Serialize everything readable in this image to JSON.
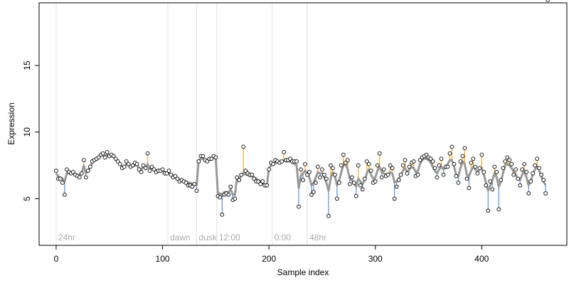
{
  "chart_data": {
    "type": "scatter",
    "title": "",
    "xlabel": "Sample index",
    "ylabel": "Expression",
    "xlim": [
      -16,
      480
    ],
    "ylim": [
      1.5,
      19.7
    ],
    "x_ticks": [
      0,
      100,
      200,
      300,
      400
    ],
    "y_ticks": [
      5,
      10,
      15
    ],
    "grid": false,
    "legend": "none",
    "colors": {
      "points_fill": "#ffffff",
      "points_stroke": "#000000",
      "fit_line": "#999999",
      "residual_positive": "#f5a623",
      "residual_negative": "#5b8fd6",
      "event_line": "#e0e0e0",
      "event_label": "#aaaaaa",
      "axis": "#000000"
    },
    "events": [
      {
        "x": 0,
        "label": "24hr"
      },
      {
        "x": 105,
        "label": "dawn"
      },
      {
        "x": 132,
        "label": "dusk"
      },
      {
        "x": 151,
        "label": "12:00"
      },
      {
        "x": 203,
        "label": "0:00"
      },
      {
        "x": 236,
        "label": "48hr"
      }
    ],
    "series": [
      {
        "x": [
          0,
          2,
          4,
          6,
          8,
          10,
          12,
          14,
          16,
          18,
          20,
          22,
          24,
          26,
          28,
          30,
          32,
          34,
          36,
          38,
          40,
          42,
          44,
          46,
          48,
          50,
          52,
          54,
          56,
          58,
          60,
          62,
          64,
          66,
          68,
          70,
          72,
          74,
          76,
          78,
          80,
          82,
          84,
          86,
          88,
          90,
          92,
          94,
          96,
          98,
          100,
          102,
          104,
          106,
          108,
          110,
          112,
          114,
          116,
          118,
          120,
          122,
          124,
          126,
          128,
          130,
          132,
          134,
          136,
          138,
          140,
          142,
          144,
          146,
          148,
          150,
          152,
          154,
          156,
          158,
          160,
          162,
          164,
          166,
          168,
          170,
          172,
          174,
          176,
          178,
          180,
          182,
          184,
          186,
          188,
          190,
          192,
          194,
          196,
          198,
          200,
          202,
          204,
          206,
          208,
          210,
          212,
          214,
          216,
          218,
          220,
          222,
          224,
          226,
          228,
          230,
          232,
          234,
          236,
          238,
          240,
          242,
          244,
          246,
          248,
          250,
          252,
          254,
          256,
          258,
          260,
          262,
          264,
          266,
          268,
          270,
          272,
          274,
          276,
          278,
          280,
          282,
          284,
          286,
          288,
          290,
          292,
          294,
          296,
          298,
          300,
          302,
          304,
          306,
          308,
          310,
          312,
          314,
          316,
          318,
          320,
          322,
          324,
          326,
          328,
          330,
          332,
          334,
          336,
          338,
          340,
          342,
          344,
          346,
          348,
          350,
          352,
          354,
          356,
          358,
          360,
          362,
          364,
          366,
          368,
          370,
          372,
          374,
          376,
          378,
          380,
          382,
          384,
          386,
          388,
          390,
          392,
          394,
          396,
          398,
          400,
          402,
          404,
          406,
          408,
          410,
          412,
          414,
          416,
          418,
          420,
          422,
          424,
          426,
          428,
          430,
          432,
          434,
          436,
          438,
          440,
          442,
          444,
          446,
          448,
          450,
          452,
          454,
          456,
          458,
          460,
          462
        ],
        "observed": [
          7.1,
          6.5,
          6.5,
          6.2,
          5.3,
          7.2,
          7.0,
          6.9,
          7.0,
          6.8,
          6.7,
          6.6,
          6.9,
          7.9,
          6.6,
          7.1,
          7.4,
          7.8,
          7.9,
          8.0,
          8.1,
          8.3,
          8.4,
          8.1,
          8.5,
          8.2,
          8.3,
          8.2,
          8.0,
          7.8,
          7.6,
          7.3,
          7.4,
          7.8,
          7.6,
          7.4,
          7.5,
          7.7,
          7.6,
          7.2,
          7.0,
          7.5,
          7.3,
          8.4,
          7.1,
          7.4,
          7.2,
          7.0,
          7.1,
          7.1,
          7.2,
          6.9,
          6.9,
          7.1,
          6.8,
          6.6,
          6.7,
          6.5,
          6.3,
          6.4,
          6.3,
          6.2,
          6.0,
          6.0,
          5.9,
          6.1,
          5.6,
          7.8,
          8.2,
          8.2,
          7.9,
          7.8,
          8.0,
          8.0,
          8.2,
          8.1,
          5.2,
          5.1,
          3.8,
          5.3,
          5.4,
          5.3,
          5.9,
          4.9,
          5.0,
          6.6,
          6.4,
          6.8,
          8.9,
          7.1,
          6.9,
          6.8,
          6.8,
          6.5,
          6.3,
          6.3,
          6.1,
          6.3,
          6.0,
          6.0,
          7.2,
          7.7,
          7.6,
          7.9,
          7.8,
          7.7,
          7.8,
          8.5,
          7.9,
          7.9,
          8.0,
          7.8,
          7.8,
          7.8,
          4.4,
          7.2,
          6.4,
          7.6,
          6.8,
          7.0,
          5.3,
          5.5,
          6.2,
          7.4,
          6.6,
          7.2,
          6.8,
          6.5,
          3.7,
          7.5,
          7.3,
          6.8,
          5.0,
          6.2,
          7.5,
          8.3,
          7.7,
          7.9,
          6.1,
          6.6,
          6.2,
          5.2,
          7.5,
          6.0,
          5.7,
          6.5,
          7.8,
          7.6,
          7.1,
          6.2,
          6.3,
          7.5,
          8.4,
          6.6,
          7.2,
          6.7,
          6.8,
          7.5,
          7.3,
          5.0,
          5.9,
          6.4,
          6.8,
          7.5,
          7.9,
          6.9,
          7.4,
          7.7,
          7.8,
          6.7,
          6.8,
          7.9,
          8.1,
          8.2,
          8.3,
          8.1,
          8.0,
          7.8,
          7.3,
          6.6,
          7.5,
          8.0,
          6.8,
          7.4,
          7.4,
          8.4,
          8.9,
          7.6,
          6.7,
          6.2,
          7.8,
          8.2,
          8.8,
          6.5,
          5.8,
          7.7,
          8.0,
          7.4,
          6.9,
          7.3,
          8.3,
          7.0,
          6.0,
          4.1,
          6.3,
          5.7,
          7.4,
          7.0,
          4.2,
          6.4,
          7.3,
          7.8,
          8.1,
          7.9,
          7.6,
          6.8,
          7.2,
          6.5,
          6.0,
          7.2,
          7.6,
          7.0,
          5.4,
          6.3,
          6.9,
          7.5,
          8.0,
          7.3,
          6.8,
          6.4,
          5.4
        ],
        "fitted": [
          6.9,
          6.7,
          6.6,
          6.5,
          6.3,
          6.9,
          6.9,
          6.9,
          6.9,
          6.8,
          6.8,
          6.8,
          6.9,
          7.5,
          6.9,
          7.1,
          7.4,
          7.7,
          7.9,
          8.0,
          8.1,
          8.2,
          8.3,
          8.2,
          8.3,
          8.2,
          8.2,
          8.2,
          8.0,
          7.8,
          7.6,
          7.4,
          7.4,
          7.6,
          7.5,
          7.4,
          7.4,
          7.5,
          7.5,
          7.3,
          7.2,
          7.4,
          7.3,
          7.6,
          7.2,
          7.3,
          7.2,
          7.1,
          7.1,
          7.1,
          7.1,
          7.0,
          6.9,
          6.9,
          6.8,
          6.7,
          6.6,
          6.5,
          6.4,
          6.4,
          6.3,
          6.3,
          6.2,
          6.2,
          6.1,
          6.1,
          6.0,
          7.9,
          8.0,
          8.0,
          7.9,
          7.9,
          7.9,
          8.0,
          8.1,
          8.1,
          5.4,
          5.4,
          5.3,
          5.5,
          5.5,
          5.5,
          5.7,
          5.3,
          5.3,
          6.6,
          6.5,
          6.7,
          6.9,
          6.8,
          6.8,
          6.7,
          6.7,
          6.6,
          6.5,
          6.4,
          6.3,
          6.2,
          6.0,
          5.9,
          7.3,
          7.5,
          7.6,
          7.7,
          7.7,
          7.7,
          7.8,
          7.9,
          7.8,
          7.8,
          7.8,
          7.7,
          7.6,
          7.5,
          5.8,
          6.7,
          6.9,
          7.1,
          6.9,
          6.6,
          6.0,
          6.2,
          6.6,
          7.0,
          6.9,
          6.9,
          6.6,
          6.2,
          5.6,
          6.5,
          7.0,
          6.7,
          6.0,
          6.4,
          7.0,
          7.5,
          7.6,
          7.2,
          6.5,
          6.4,
          6.1,
          5.9,
          6.5,
          6.3,
          6.1,
          6.4,
          6.9,
          7.2,
          6.8,
          6.5,
          6.6,
          7.1,
          7.4,
          7.0,
          6.9,
          6.8,
          6.8,
          7.0,
          6.9,
          6.2,
          6.3,
          6.5,
          6.8,
          7.1,
          7.3,
          7.0,
          7.2,
          7.4,
          7.3,
          7.0,
          7.1,
          7.6,
          7.9,
          8.0,
          8.0,
          7.9,
          7.7,
          7.4,
          7.1,
          6.9,
          7.2,
          7.4,
          7.2,
          7.3,
          7.6,
          7.9,
          7.9,
          7.4,
          6.8,
          6.7,
          7.3,
          7.8,
          7.6,
          6.8,
          6.7,
          7.1,
          7.4,
          7.2,
          7.0,
          7.2,
          7.3,
          6.8,
          6.2,
          5.6,
          6.0,
          6.4,
          6.9,
          6.6,
          5.9,
          6.3,
          6.9,
          7.5,
          7.6,
          7.5,
          7.3,
          7.0,
          6.8,
          6.5,
          6.4,
          6.8,
          7.1,
          6.6,
          6.0,
          6.3,
          6.8,
          7.2,
          7.4,
          7.1,
          6.7,
          6.3,
          6.0
        ]
      }
    ]
  }
}
